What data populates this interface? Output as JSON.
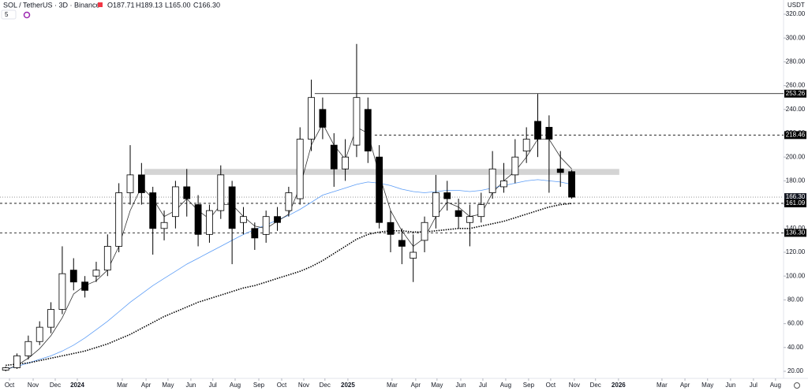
{
  "header": {
    "symbol": "SOL / TetherUS · 3D · Binance",
    "ohlc": [
      "O187.71",
      "H189.13",
      "L165.00",
      "C166.30"
    ],
    "indicator": "5",
    "currency": "USDT"
  },
  "chart_data": {
    "type": "candlestick",
    "xlim": [
      0,
      69
    ],
    "xticks": [
      {
        "value": 0.84,
        "label": "Oct"
      },
      {
        "value": 2.93,
        "label": "Nov"
      },
      {
        "value": 4.88,
        "label": "Dec"
      },
      {
        "value": 6.83,
        "label": "2024"
      },
      {
        "value": 10.8,
        "label": "Mar"
      },
      {
        "value": 12.9,
        "label": "Apr"
      },
      {
        "value": 14.84,
        "label": "May"
      },
      {
        "value": 16.86,
        "label": "Jun"
      },
      {
        "value": 18.8,
        "label": "Jul"
      },
      {
        "value": 20.77,
        "label": "Aug"
      },
      {
        "value": 22.86,
        "label": "Sep"
      },
      {
        "value": 24.88,
        "label": "Oct"
      },
      {
        "value": 26.83,
        "label": "Nov"
      },
      {
        "value": 28.7,
        "label": "Dec"
      },
      {
        "value": 30.73,
        "label": "2025"
      },
      {
        "value": 34.63,
        "label": "Mar"
      },
      {
        "value": 36.72,
        "label": "Apr"
      },
      {
        "value": 38.6,
        "label": "May"
      },
      {
        "value": 40.7,
        "label": "Jun"
      },
      {
        "value": 42.65,
        "label": "Jul"
      },
      {
        "value": 44.67,
        "label": "Aug"
      },
      {
        "value": 46.69,
        "label": "Sep"
      },
      {
        "value": 48.64,
        "label": "Oct"
      },
      {
        "value": 50.73,
        "label": "Nov"
      },
      {
        "value": 52.6,
        "label": "Dec"
      },
      {
        "value": 54.63,
        "label": "2026"
      },
      {
        "value": 58.47,
        "label": "Mar"
      },
      {
        "value": 60.5,
        "label": "Apr"
      },
      {
        "value": 62.5,
        "label": "May"
      },
      {
        "value": 64.53,
        "label": "Jun"
      },
      {
        "value": 66.55,
        "label": "Jul"
      },
      {
        "value": 68.5,
        "label": "Aug"
      }
    ],
    "ylim": [
      15,
      330
    ],
    "yticks": [
      {
        "value": 20,
        "label": "20.00"
      },
      {
        "value": 40,
        "label": "40.00"
      },
      {
        "value": 60,
        "label": "60.00"
      },
      {
        "value": 80,
        "label": "80.00"
      },
      {
        "value": 100,
        "label": "100.00"
      },
      {
        "value": 120,
        "label": "120.00"
      },
      {
        "value": 140,
        "label": "140.00"
      },
      {
        "value": 160,
        "label": "160.00"
      },
      {
        "value": 180,
        "label": "180.00"
      },
      {
        "value": 200,
        "label": "200.00"
      },
      {
        "value": 220,
        "label": "220.00"
      },
      {
        "value": 240,
        "label": "240.00"
      },
      {
        "value": 260,
        "label": "260.00"
      },
      {
        "value": 280,
        "label": "280.00"
      },
      {
        "value": 300,
        "label": "300.00"
      },
      {
        "value": 320,
        "label": "320.00"
      }
    ],
    "up_color": "#ffffff",
    "down_color": "#000000",
    "open": [
      21,
      23,
      33,
      45,
      57,
      72,
      105,
      95,
      100,
      105,
      125,
      170,
      185,
      170,
      140,
      150,
      175,
      160,
      135,
      155,
      175,
      145,
      140,
      135,
      150,
      155,
      165,
      215,
      240,
      210,
      190,
      210,
      240,
      200,
      145,
      130,
      115,
      130,
      150,
      170,
      155,
      145,
      150,
      170,
      175,
      185,
      205,
      230,
      225,
      190,
      187.71
    ],
    "high": [
      24,
      35,
      50,
      62,
      78,
      125,
      115,
      100,
      112,
      135,
      178,
      210,
      195,
      175,
      155,
      180,
      190,
      168,
      160,
      193,
      180,
      158,
      145,
      155,
      158,
      175,
      225,
      265,
      250,
      220,
      215,
      295,
      250,
      210,
      155,
      140,
      135,
      150,
      185,
      180,
      165,
      160,
      170,
      205,
      195,
      215,
      225,
      253,
      235,
      205,
      189.13
    ],
    "low": [
      20,
      22,
      30,
      42,
      52,
      68,
      88,
      82,
      95,
      100,
      120,
      160,
      160,
      118,
      130,
      140,
      150,
      125,
      128,
      148,
      110,
      135,
      122,
      128,
      138,
      150,
      160,
      205,
      215,
      175,
      180,
      200,
      195,
      140,
      120,
      110,
      95,
      120,
      140,
      155,
      140,
      125,
      145,
      165,
      170,
      178,
      195,
      200,
      170,
      175,
      165
    ],
    "close": [
      23,
      33,
      45,
      57,
      72,
      102,
      95,
      88,
      105,
      125,
      170,
      185,
      170,
      140,
      145,
      175,
      165,
      135,
      155,
      185,
      140,
      150,
      132,
      150,
      145,
      170,
      215,
      250,
      225,
      190,
      200,
      250,
      205,
      145,
      135,
      125,
      120,
      145,
      170,
      165,
      150,
      150,
      160,
      190,
      180,
      200,
      215,
      215,
      215,
      187,
      166.3
    ],
    "lines": [
      {
        "color": "#5b9cf6",
        "style": "solid",
        "values": [
          22,
          24,
          27,
          30,
          33,
          37,
          42,
          48,
          55,
          62,
          70,
          78,
          85,
          92,
          98,
          104,
          110,
          115,
          120,
          125,
          130,
          135,
          139,
          143,
          147,
          151,
          156,
          162,
          168,
          171,
          174,
          177,
          179,
          178,
          176,
          173,
          171,
          170,
          171,
          172,
          172,
          171,
          172,
          174,
          176,
          178,
          180,
          181,
          180,
          179,
          177
        ]
      },
      {
        "color": "#000000",
        "style": "dotted",
        "values": [
          25,
          26,
          27,
          29,
          31,
          33,
          35,
          37,
          40,
          43,
          47,
          51,
          56,
          61,
          66,
          70,
          74,
          78,
          81,
          84,
          87,
          90,
          92,
          95,
          98,
          101,
          104,
          108,
          113,
          119,
          125,
          131,
          135,
          137,
          138,
          138,
          137,
          137,
          138,
          139,
          140,
          140,
          142,
          144,
          146,
          149,
          152,
          155,
          158,
          160,
          161
        ]
      },
      {
        "color": "#000000",
        "style": "solid",
        "values": [
          21,
          25,
          31,
          39,
          50,
          65,
          85,
          92,
          96,
          105,
          125,
          155,
          175,
          165,
          150,
          155,
          165,
          155,
          148,
          160,
          160,
          150,
          142,
          140,
          146,
          152,
          175,
          210,
          228,
          210,
          198,
          225,
          220,
          185,
          155,
          138,
          125,
          132,
          150,
          162,
          158,
          150,
          152,
          170,
          180,
          188,
          200,
          215,
          215,
          200,
          190
        ]
      }
    ],
    "zone": {
      "low": 185,
      "high": 190,
      "from": 12.75,
      "to": 54.7,
      "color": "#d4d4d4"
    },
    "levels": [
      {
        "value": 253.26,
        "label": "253.26",
        "style": "solid",
        "from": 27.8
      },
      {
        "value": 218.46,
        "label": "218.46",
        "style": "dashed",
        "from": 33.1
      },
      {
        "value": 166.3,
        "label": "166.30",
        "style": "dotted",
        "from": 0
      },
      {
        "value": 161.09,
        "label": "161.09",
        "style": "dashed",
        "from": 0
      },
      {
        "value": 136.3,
        "label": "136.30",
        "style": "dashed",
        "from": 0
      }
    ]
  }
}
